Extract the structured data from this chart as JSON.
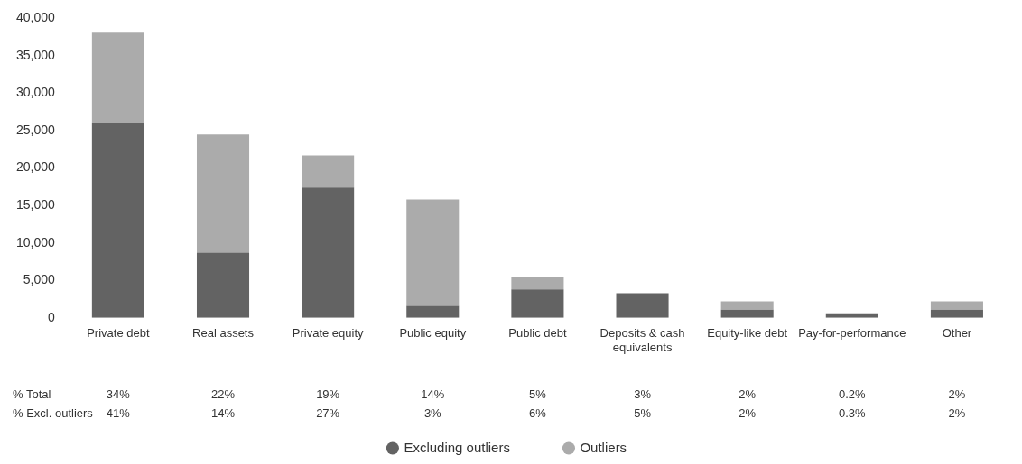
{
  "chart_data": {
    "type": "bar",
    "stacked": true,
    "legend": "bottom",
    "categories": [
      "Private debt",
      "Real assets",
      "Private equity",
      "Public equity",
      "Public debt",
      "Deposits & cash equivalents",
      "Equity-like debt",
      "Pay-for-performance",
      "Other"
    ],
    "series": [
      {
        "name": "Excluding outliers",
        "color": "#636363",
        "values": [
          26100,
          8700,
          17400,
          1600,
          3800,
          3300,
          1100,
          600,
          1100
        ]
      },
      {
        "name": "Outliers",
        "color": "#ababab",
        "values": [
          12000,
          15800,
          4300,
          14200,
          1600,
          null,
          1100,
          null,
          1100
        ]
      }
    ],
    "ylim": [
      0,
      40000
    ],
    "yticks": [
      0,
      {
        "value": 5000,
        "label": "5,000"
      },
      {
        "value": 10000,
        "label": "10,000"
      },
      {
        "value": 15000,
        "label": "15,000"
      },
      {
        "value": 20000,
        "label": "20,000"
      },
      {
        "value": 25000,
        "label": "25,000"
      },
      {
        "value": 30000,
        "label": "30,000"
      },
      {
        "value": 35000,
        "label": "35,000"
      },
      {
        "value": 40000,
        "label": "40,000"
      }
    ],
    "annotations": [
      "% Total",
      "34%",
      "22%",
      "19%",
      "14%",
      "5%",
      "3%",
      "2%",
      "0.2%",
      "2%",
      "% Excl. outliers",
      "41%",
      "14%",
      "27%",
      "3%",
      "6%",
      "5%",
      "2%",
      "0.3%",
      "2%"
    ]
  }
}
